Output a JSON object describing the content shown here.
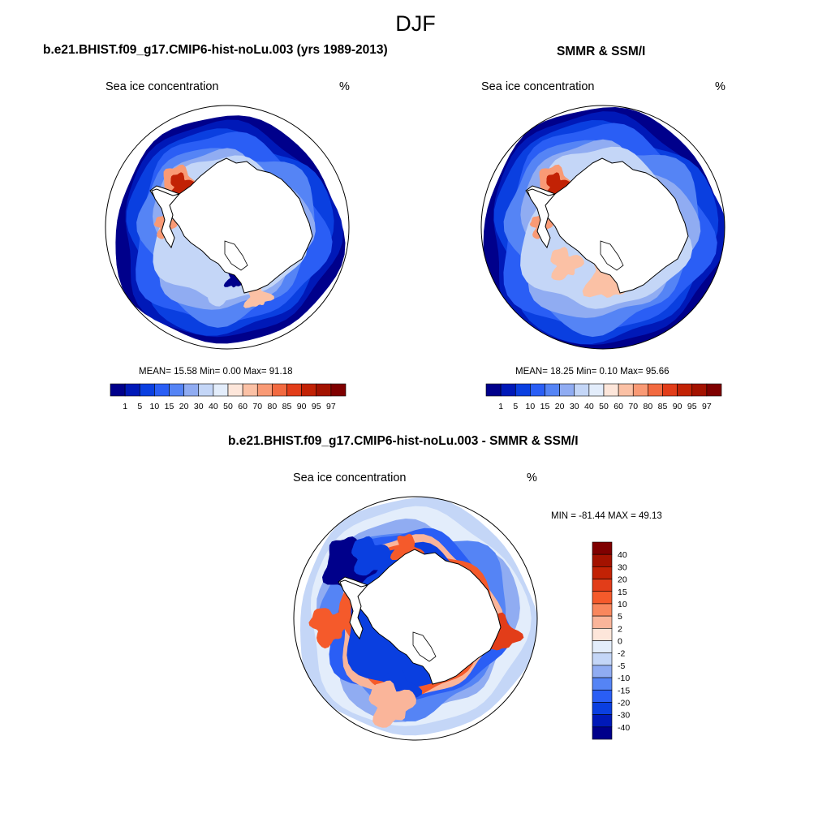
{
  "main_title": "DJF",
  "panels": [
    {
      "id": "model",
      "title": "b.e21.BHIST.f09_g17.CMIP6-hist-noLu.003 (yrs 1989-2013)",
      "left_label": "Sea ice concentration",
      "right_label": "%",
      "stats": {
        "mean": "15.58",
        "min": "0.00",
        "max": "91.18",
        "text": "MEAN=  15.58  Min=   0.00  Max=  91.18"
      },
      "colorbar_labels": [
        "1",
        "5",
        "10",
        "15",
        "20",
        "30",
        "40",
        "50",
        "60",
        "70",
        "80",
        "85",
        "90",
        "95",
        "97"
      ]
    },
    {
      "id": "obs",
      "title": "SMMR & SSM/I",
      "left_label": "Sea ice concentration",
      "right_label": "%",
      "stats": {
        "mean": "18.25",
        "min": "0.10",
        "max": "95.66",
        "text": "MEAN=  18.25  Min=   0.10  Max=  95.66"
      },
      "colorbar_labels": [
        "1",
        "5",
        "10",
        "15",
        "20",
        "30",
        "40",
        "50",
        "60",
        "70",
        "80",
        "85",
        "90",
        "95",
        "97"
      ]
    },
    {
      "id": "diff",
      "title": "b.e21.BHIST.f09_g17.CMIP6-hist-noLu.003 - SMMR & SSM/I",
      "left_label": "Sea ice concentration",
      "right_label": "%",
      "stats": {
        "min": "-81.44",
        "max": "49.13",
        "text": "MIN = -81.44 MAX =  49.13"
      },
      "colorbar_labels": [
        "40",
        "30",
        "20",
        "15",
        "10",
        "5",
        "2",
        "0",
        "-2",
        "-5",
        "-10",
        "-15",
        "-20",
        "-30",
        "-40"
      ]
    }
  ],
  "colors": {
    "abs_scale": [
      "#00008b",
      "#0019b8",
      "#0a3fe0",
      "#2a5ef5",
      "#5584f5",
      "#90acf2",
      "#c4d6f7",
      "#e3edfb",
      "#fde6da",
      "#fbc1a5",
      "#f99a75",
      "#f26a40",
      "#e23d19",
      "#c22205",
      "#a31200",
      "#7f0000"
    ],
    "diff_scale": [
      "#7f0000",
      "#a31200",
      "#c22205",
      "#e23d19",
      "#f55a2b",
      "#f8875d",
      "#fab59a",
      "#fde6da",
      "#e3edfb",
      "#c4d6f7",
      "#90acf2",
      "#5584f5",
      "#2a5ef5",
      "#0a3fe0",
      "#0019b8",
      "#00008b"
    ],
    "land": "#ffffff",
    "outline": "#000000"
  }
}
